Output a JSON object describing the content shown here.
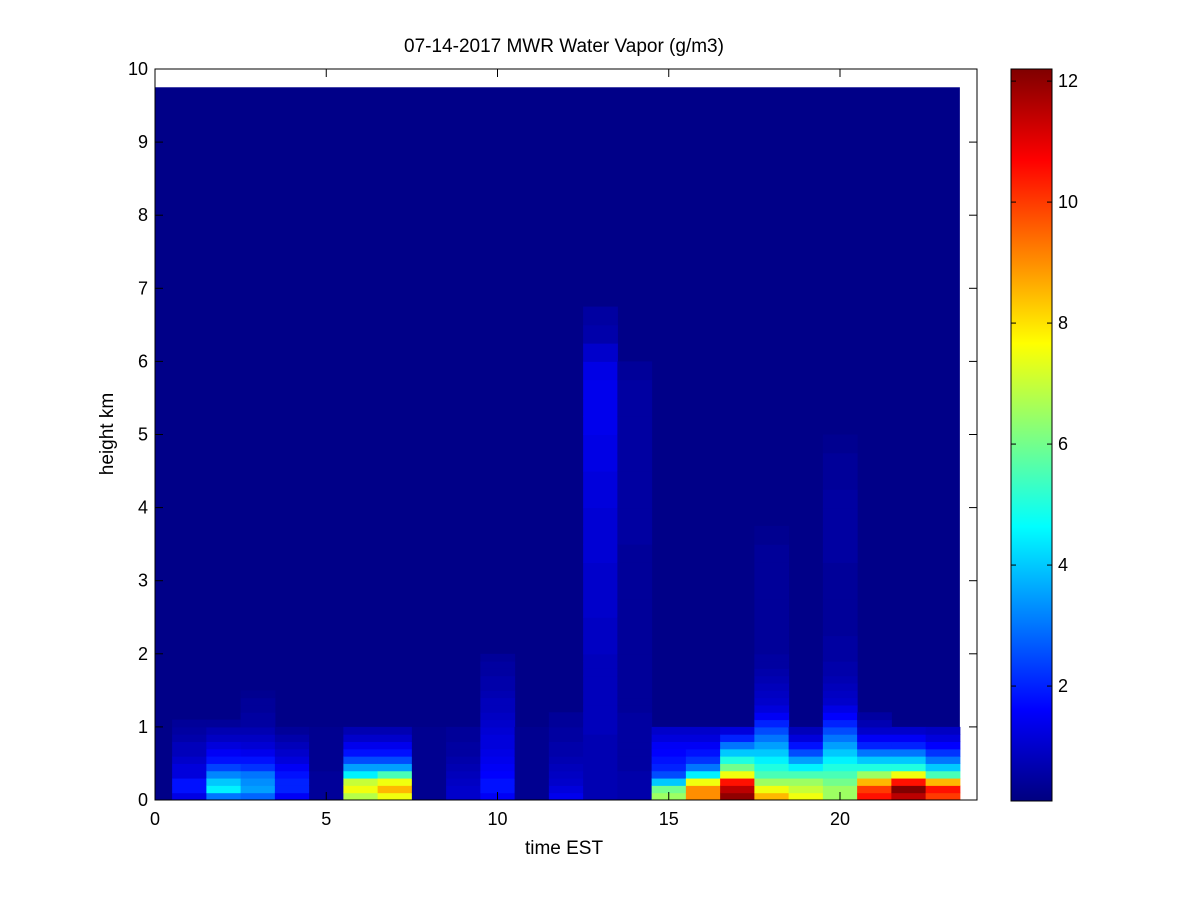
{
  "chart_data": {
    "type": "heatmap",
    "title": "07-14-2017 MWR Water Vapor (g/m3)",
    "xlabel": "time EST",
    "ylabel": "height km",
    "xlim": [
      0,
      24.0
    ],
    "ylim": [
      0,
      10
    ],
    "x_ticks": [
      0,
      5,
      10,
      15,
      20
    ],
    "y_ticks": [
      0,
      1,
      2,
      3,
      4,
      5,
      6,
      7,
      8,
      9,
      10
    ],
    "colormap": "jet",
    "colorbar": {
      "min": 0.1,
      "max": 12.2,
      "ticks": [
        2,
        4,
        6,
        8,
        10,
        12
      ]
    },
    "background_value": 0.2,
    "grid": false,
    "times": [
      0,
      1,
      2,
      3,
      4,
      5,
      6,
      7,
      8,
      9,
      10,
      11,
      12,
      13,
      14,
      15,
      16,
      17,
      18,
      19,
      20,
      21,
      22,
      23
    ],
    "height_levels": [
      0,
      0.1,
      0.2,
      0.3,
      0.4,
      0.5,
      0.6,
      0.7,
      0.8,
      0.9,
      1.0,
      1.1,
      1.2,
      1.3,
      1.4,
      1.5,
      1.6,
      1.7,
      1.8,
      1.9,
      2.0,
      2.25,
      2.5,
      2.75,
      3.0,
      3.25,
      3.5,
      3.75,
      4.0,
      4.25,
      4.5,
      4.75,
      5.0,
      5.25,
      5.5,
      5.75,
      6.0,
      6.25,
      6.5,
      6.75,
      7.0,
      7.5,
      8.0,
      8.5,
      9.0,
      9.5,
      9.75
    ],
    "profiles": [
      {
        "time": 0,
        "values": [
          0.2,
          0.2,
          0.2,
          0.2,
          0.2,
          0.2,
          0.2,
          0.2,
          0.2,
          0.2
        ]
      },
      {
        "time": 1,
        "values": [
          1.3,
          1.8,
          1.8,
          1.2,
          1.2,
          1.0,
          0.8,
          0.8,
          0.6,
          0.5,
          0.4
        ]
      },
      {
        "time": 2,
        "values": [
          3.0,
          4.5,
          4.0,
          3.2,
          2.4,
          1.8,
          1.5,
          1.2,
          0.9,
          0.7,
          0.4
        ]
      },
      {
        "time": 3,
        "values": [
          2.8,
          3.5,
          3.3,
          3.0,
          2.2,
          1.8,
          1.4,
          1.1,
          0.9,
          0.7,
          0.5,
          0.5,
          0.4,
          0.4,
          0.3
        ]
      },
      {
        "time": 4,
        "values": [
          1.5,
          2.0,
          2.0,
          1.8,
          1.5,
          1.2,
          1.0,
          0.8,
          0.6,
          0.4
        ]
      },
      {
        "time": 5,
        "values": [
          0.4,
          0.4,
          0.4,
          0.4,
          0.3,
          0.3,
          0.3,
          0.3,
          0.3,
          0.3
        ]
      },
      {
        "time": 6,
        "values": [
          6.8,
          7.5,
          7.0,
          4.5,
          3.5,
          2.5,
          1.8,
          1.4,
          1.0,
          0.7
        ]
      },
      {
        "time": 7,
        "values": [
          7.5,
          8.5,
          7.5,
          5.5,
          3.5,
          2.5,
          1.8,
          1.4,
          1.0,
          0.7
        ]
      },
      {
        "time": 8,
        "values": [
          0.3,
          0.3,
          0.3,
          0.3,
          0.3,
          0.3,
          0.3,
          0.3,
          0.3,
          0.3
        ]
      },
      {
        "time": 9,
        "values": [
          1.0,
          1.0,
          0.9,
          0.8,
          0.7,
          0.6,
          0.5,
          0.5,
          0.4,
          0.4
        ]
      },
      {
        "time": 10,
        "values": [
          1.5,
          1.8,
          1.8,
          1.6,
          1.5,
          1.4,
          1.3,
          1.2,
          1.2,
          1.1,
          1.0,
          0.9,
          0.8,
          0.8,
          0.7,
          0.6,
          0.6,
          0.5,
          0.5,
          0.4
        ]
      },
      {
        "time": 11,
        "values": [
          0.3,
          0.3,
          0.3,
          0.3,
          0.3,
          0.3,
          0.3,
          0.3,
          0.3,
          0.3
        ]
      },
      {
        "time": 12,
        "values": [
          1.4,
          1.2,
          1.0,
          0.9,
          0.8,
          0.7,
          0.6,
          0.6,
          0.5,
          0.5,
          0.4,
          0.4
        ]
      },
      {
        "time": 13,
        "values": [
          0.7,
          0.7,
          0.7,
          0.7,
          0.7,
          0.7,
          0.7,
          0.7,
          0.7,
          0.8,
          0.8,
          0.8,
          0.8,
          0.8,
          0.8,
          0.8,
          0.8,
          0.8,
          0.8,
          0.8,
          0.9,
          0.9,
          1.0,
          1.0,
          1.0,
          1.1,
          1.1,
          1.1,
          1.2,
          1.2,
          1.3,
          1.3,
          1.4,
          1.4,
          1.4,
          1.3,
          1.0,
          0.6,
          0.5
        ]
      },
      {
        "time": 14,
        "values": [
          0.6,
          0.6,
          0.6,
          0.6,
          0.5,
          0.5,
          0.5,
          0.5,
          0.5,
          0.5,
          0.5,
          0.5,
          0.4,
          0.4,
          0.4,
          0.4,
          0.4,
          0.4,
          0.4,
          0.4,
          0.4,
          0.4,
          0.4,
          0.4,
          0.4,
          0.4,
          0.5,
          0.5,
          0.5,
          0.5,
          0.5,
          0.5,
          0.5,
          0.5,
          0.5,
          0.4
        ]
      },
      {
        "time": 15,
        "values": [
          6.5,
          6.0,
          4.0,
          2.5,
          2.0,
          1.8,
          1.6,
          1.5,
          1.2,
          1.0
        ]
      },
      {
        "time": 16,
        "values": [
          9.0,
          9.0,
          7.5,
          4.5,
          3.0,
          2.2,
          1.8,
          1.5,
          1.2,
          1.0
        ]
      },
      {
        "time": 17,
        "values": [
          12.0,
          11.5,
          10.5,
          7.5,
          6.0,
          5.0,
          4.0,
          3.0,
          2.0,
          1.2
        ]
      },
      {
        "time": 18,
        "values": [
          8.5,
          7.5,
          6.5,
          5.5,
          5.0,
          4.5,
          4.0,
          3.5,
          3.0,
          2.5,
          2.0,
          1.5,
          1.2,
          1.0,
          0.9,
          0.8,
          0.7,
          0.6,
          0.5,
          0.5,
          0.4,
          0.4,
          0.4,
          0.4,
          0.4,
          0.4,
          0.3
        ]
      },
      {
        "time": 19,
        "values": [
          7.5,
          7.0,
          6.5,
          5.5,
          4.5,
          3.5,
          2.5,
          1.8,
          1.2,
          0.8
        ]
      },
      {
        "time": 20,
        "values": [
          6.5,
          6.5,
          6.0,
          5.5,
          5.0,
          4.5,
          4.0,
          3.5,
          3.0,
          2.5,
          2.0,
          1.6,
          1.3,
          1.0,
          0.9,
          0.8,
          0.7,
          0.6,
          0.6,
          0.5,
          0.5,
          0.4,
          0.4,
          0.4,
          0.4,
          0.5,
          0.5,
          0.5,
          0.5,
          0.4,
          0.4,
          0.3
        ]
      },
      {
        "time": 21,
        "values": [
          10.5,
          10.0,
          8.5,
          6.5,
          5.0,
          4.0,
          3.0,
          2.0,
          1.5,
          1.0,
          0.7,
          0.5
        ]
      },
      {
        "time": 22,
        "values": [
          11.5,
          12.2,
          10.5,
          7.5,
          5.0,
          4.0,
          3.0,
          2.0,
          1.5,
          1.0
        ]
      },
      {
        "time": 23,
        "values": [
          10.0,
          10.5,
          8.5,
          5.5,
          4.0,
          3.0,
          2.2,
          1.6,
          1.2,
          0.9
        ]
      }
    ]
  }
}
